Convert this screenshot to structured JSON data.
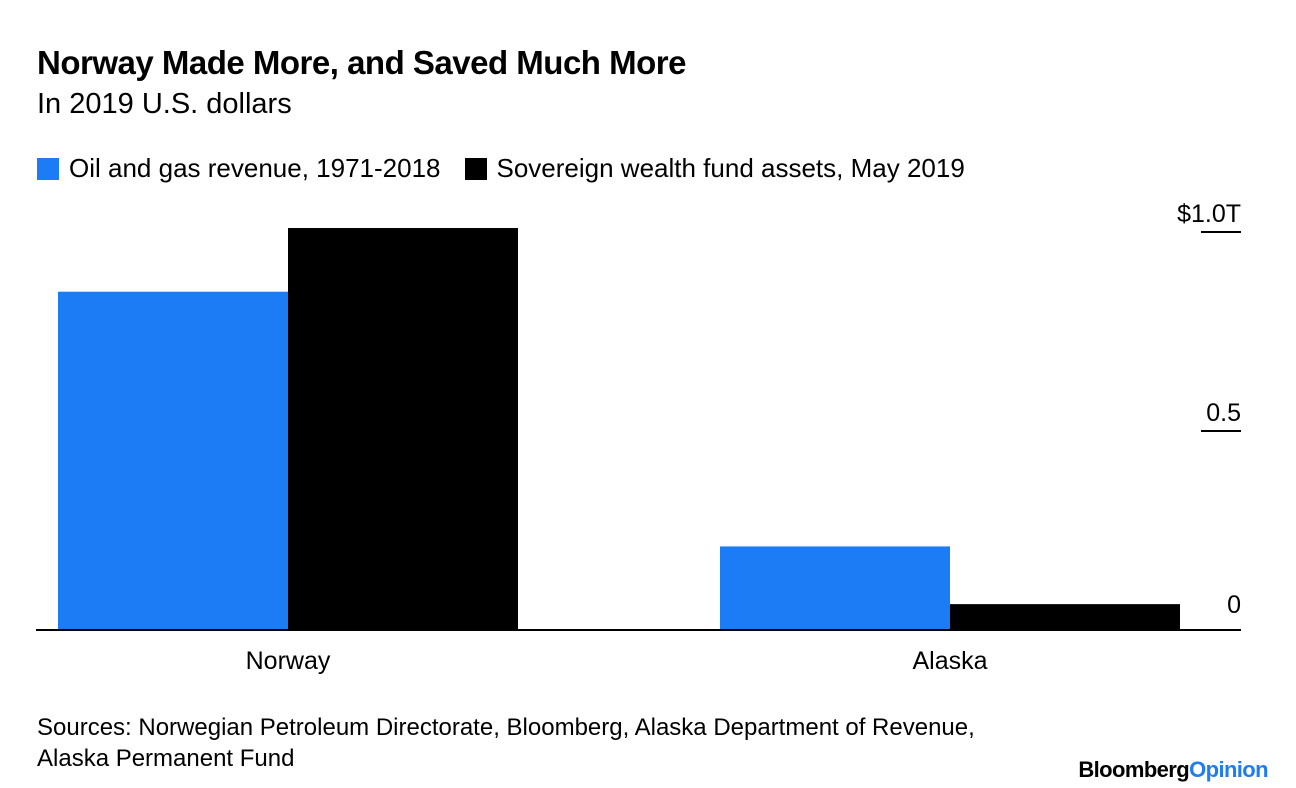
{
  "header": {
    "title": "Norway Made More, and Saved Much More",
    "subtitle": "In 2019 U.S. dollars"
  },
  "legend": [
    {
      "label": "Oil and gas revenue, 1971-2018",
      "color": "#1b7cf6"
    },
    {
      "label": "Sovereign wealth fund assets, May 2019",
      "color": "#000000"
    }
  ],
  "chart_data": {
    "type": "bar",
    "title": "Norway Made More, and Saved Much More",
    "subtitle": "In 2019 U.S. dollars",
    "categories": [
      "Norway",
      "Alaska"
    ],
    "series": [
      {
        "name": "Oil and gas revenue, 1971-2018",
        "color": "#1b7cf6",
        "values": [
          0.85,
          0.21
        ]
      },
      {
        "name": "Sovereign wealth fund assets, May 2019",
        "color": "#000000",
        "values": [
          1.01,
          0.065
        ]
      }
    ],
    "ylim": [
      0,
      1.0
    ],
    "yticks": [
      0,
      0.5,
      1.0
    ],
    "ytick_labels": [
      "0",
      "0.5",
      "$1.0T"
    ],
    "axis_side": "right",
    "grid": false,
    "legend_position": "top-left"
  },
  "footer": {
    "source": "Sources: Norwegian Petroleum Directorate, Bloomberg, Alaska Department of Revenue, Alaska Permanent Fund",
    "brand_part1": "Bloomberg",
    "brand_part2": "Opinion"
  }
}
